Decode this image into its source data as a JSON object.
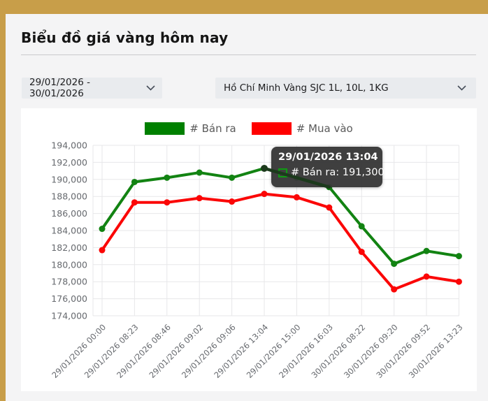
{
  "page": {
    "title": "Biểu đồ giá vàng hôm nay"
  },
  "filters": {
    "date_range": "29/01/2026 - 30/01/2026",
    "market": "Hồ Chí Minh Vàng SJC 1L, 10L, 1KG"
  },
  "legend": [
    {
      "label": "# Bán ra",
      "color": "#008000"
    },
    {
      "label": "# Mua vào",
      "color": "#ff0000"
    }
  ],
  "tooltip": {
    "title": "29/01/2026 13:04",
    "line": "# Bán ra: 191,300",
    "series_label": "# Bán ra",
    "value": "191,300",
    "swatch_border_color": "#0f9b13"
  },
  "chart_data": {
    "type": "line",
    "x": [
      "29/01/2026 00:00",
      "29/01/2026 08:23",
      "29/01/2026 08:46",
      "29/01/2026 09:02",
      "29/01/2026 09:06",
      "29/01/2026 13:04",
      "29/01/2026 15:00",
      "29/01/2026 16:03",
      "30/01/2026 08:22",
      "30/01/2026 09:20",
      "30/01/2026 09:52",
      "30/01/2026 13:23"
    ],
    "series": [
      {
        "name": "# Bán ra",
        "color": "#128312",
        "values": [
          184200,
          189700,
          190200,
          190800,
          190200,
          191300,
          190200,
          189100,
          184500,
          180100,
          181600,
          181000
        ]
      },
      {
        "name": "# Mua vào",
        "color": "#fb0606",
        "values": [
          181700,
          187300,
          187300,
          187800,
          187400,
          188300,
          187900,
          186700,
          181500,
          177100,
          178600,
          178000
        ]
      }
    ],
    "ylim": [
      174000,
      194000
    ],
    "ytick_step": 2000,
    "grid": true,
    "legend_position": "top",
    "highlight": {
      "series": 0,
      "from_index": 5,
      "to_index": 7,
      "color": "#1c3a1c"
    }
  },
  "colors": {
    "frame_gold": "#c89e49",
    "page_bg": "#f4f4f5",
    "card_bg": "#ffffff",
    "gridline": "#e7e7e9",
    "axis_label": "#66696e",
    "tooltip_bg": "#373737"
  }
}
